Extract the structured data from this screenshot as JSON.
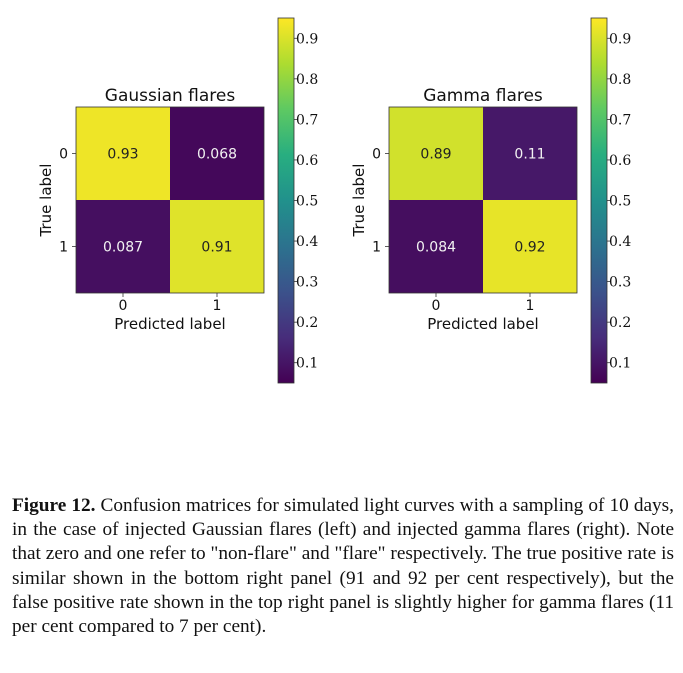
{
  "chart_data": [
    {
      "type": "heatmap",
      "title": "Gaussian flares",
      "xlabel": "Predicted label",
      "ylabel": "True label",
      "x_ticks": [
        "0",
        "1"
      ],
      "y_ticks": [
        "0",
        "1"
      ],
      "values": [
        [
          0.93,
          0.068
        ],
        [
          0.087,
          0.91
        ]
      ],
      "cell_labels": [
        [
          "0.93",
          "0.068"
        ],
        [
          "0.087",
          "0.91"
        ]
      ],
      "colorbar": {
        "range": [
          0.05,
          0.95
        ],
        "ticks": [
          "0.9",
          "0.8",
          "0.7",
          "0.6",
          "0.5",
          "0.4",
          "0.3",
          "0.2",
          "0.1"
        ]
      }
    },
    {
      "type": "heatmap",
      "title": "Gamma flares",
      "xlabel": "Predicted label",
      "ylabel": "True label",
      "x_ticks": [
        "0",
        "1"
      ],
      "y_ticks": [
        "0",
        "1"
      ],
      "values": [
        [
          0.89,
          0.11
        ],
        [
          0.084,
          0.92
        ]
      ],
      "cell_labels": [
        [
          "0.89",
          "0.11"
        ],
        [
          "0.084",
          "0.92"
        ]
      ],
      "colorbar": {
        "range": [
          0.05,
          0.95
        ],
        "ticks": [
          "0.9",
          "0.8",
          "0.7",
          "0.6",
          "0.5",
          "0.4",
          "0.3",
          "0.2",
          "0.1"
        ]
      }
    }
  ],
  "caption": {
    "label": "Figure 12.",
    "text": " Confusion matrices for simulated light curves with a sampling of 10 days, in the case of injected Gaussian flares (left) and injected gamma flares (right). Note that zero and one refer to \"non-flare\" and \"flare\" respectively. The true positive rate is similar shown in the bottom right panel (91 and 92 per cent respectively), but the false positive rate shown in the top right panel is slightly higher for gamma flares (11 per cent compared to 7 per cent)."
  },
  "colors": {
    "viridis_low": "#440154",
    "viridis_high": "#fde725"
  }
}
